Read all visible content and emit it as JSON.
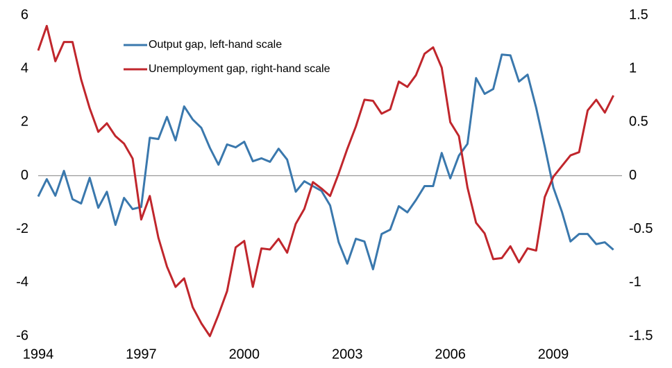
{
  "chart_data": {
    "type": "line",
    "x": [
      1994,
      1994.25,
      1994.5,
      1994.75,
      1995,
      1995.25,
      1995.5,
      1995.75,
      1996,
      1996.25,
      1996.5,
      1996.75,
      1997,
      1997.25,
      1997.5,
      1997.75,
      1998,
      1998.25,
      1998.5,
      1998.75,
      1999,
      1999.25,
      1999.5,
      1999.75,
      2000,
      2000.25,
      2000.5,
      2000.75,
      2001,
      2001.25,
      2001.5,
      2001.75,
      2002,
      2002.25,
      2002.5,
      2002.75,
      2003,
      2003.25,
      2003.5,
      2003.75,
      2004,
      2004.25,
      2004.5,
      2004.75,
      2005,
      2005.25,
      2005.5,
      2005.75,
      2006,
      2006.25,
      2006.5,
      2006.75,
      2007,
      2007.25,
      2007.5,
      2007.75,
      2008,
      2008.25,
      2008.5,
      2008.75,
      2009,
      2009.25,
      2009.5,
      2009.75,
      2010,
      2010.25,
      2010.5,
      2010.75
    ],
    "series": [
      {
        "name": "Output gap, left-hand scale",
        "color": "#3a78ad",
        "axis": "y",
        "values": [
          -0.78,
          -0.13,
          -0.75,
          0.18,
          -0.88,
          -1.04,
          -0.08,
          -1.2,
          -0.6,
          -1.84,
          -0.83,
          -1.25,
          -1.17,
          1.42,
          1.37,
          2.2,
          1.32,
          2.59,
          2.1,
          1.79,
          1.04,
          0.41,
          1.17,
          1.06,
          1.27,
          0.54,
          0.65,
          0.52,
          1.01,
          0.6,
          -0.6,
          -0.21,
          -0.39,
          -0.57,
          -1.11,
          -2.49,
          -3.29,
          -2.36,
          -2.46,
          -3.5,
          -2.18,
          -2.02,
          -1.14,
          -1.37,
          -0.91,
          -0.39,
          -0.39,
          0.85,
          -0.1,
          0.75,
          1.19,
          3.65,
          3.06,
          3.24,
          4.53,
          4.5,
          3.52,
          3.78,
          2.54,
          1.09,
          -0.44,
          -1.35,
          -2.46,
          -2.18,
          -2.18,
          -2.56,
          -2.49,
          -2.77
        ]
      },
      {
        "name": "Unemployment gap, right-hand scale",
        "color": "#c0262c",
        "axis": "y2",
        "values": [
          1.17,
          1.4,
          1.07,
          1.25,
          1.25,
          0.9,
          0.63,
          0.41,
          0.49,
          0.37,
          0.3,
          0.16,
          -0.41,
          -0.19,
          -0.58,
          -0.85,
          -1.04,
          -0.96,
          -1.23,
          -1.38,
          -1.5,
          -1.3,
          -1.08,
          -0.67,
          -0.61,
          -1.04,
          -0.68,
          -0.69,
          -0.59,
          -0.72,
          -0.45,
          -0.31,
          -0.06,
          -0.12,
          -0.19,
          0.02,
          0.25,
          0.46,
          0.71,
          0.7,
          0.58,
          0.62,
          0.88,
          0.83,
          0.94,
          1.14,
          1.2,
          1.01,
          0.5,
          0.37,
          -0.11,
          -0.44,
          -0.54,
          -0.78,
          -0.77,
          -0.66,
          -0.81,
          -0.68,
          -0.7,
          -0.2,
          -0.01,
          0.09,
          0.19,
          0.22,
          0.61,
          0.71,
          0.59,
          0.75
        ]
      }
    ],
    "xlim": [
      1994,
      2011
    ],
    "xticks": [
      1994,
      1997,
      2000,
      2003,
      2006,
      2009
    ],
    "ylim": [
      -6,
      6
    ],
    "yticks": [
      -6,
      -4,
      -2,
      0,
      2,
      4,
      6
    ],
    "y2lim": [
      -1.5,
      1.5
    ],
    "y2ticks": [
      -1.5,
      -1,
      -0.5,
      0,
      0.5,
      1,
      1.5
    ],
    "legend": "upper center",
    "grid": false
  }
}
